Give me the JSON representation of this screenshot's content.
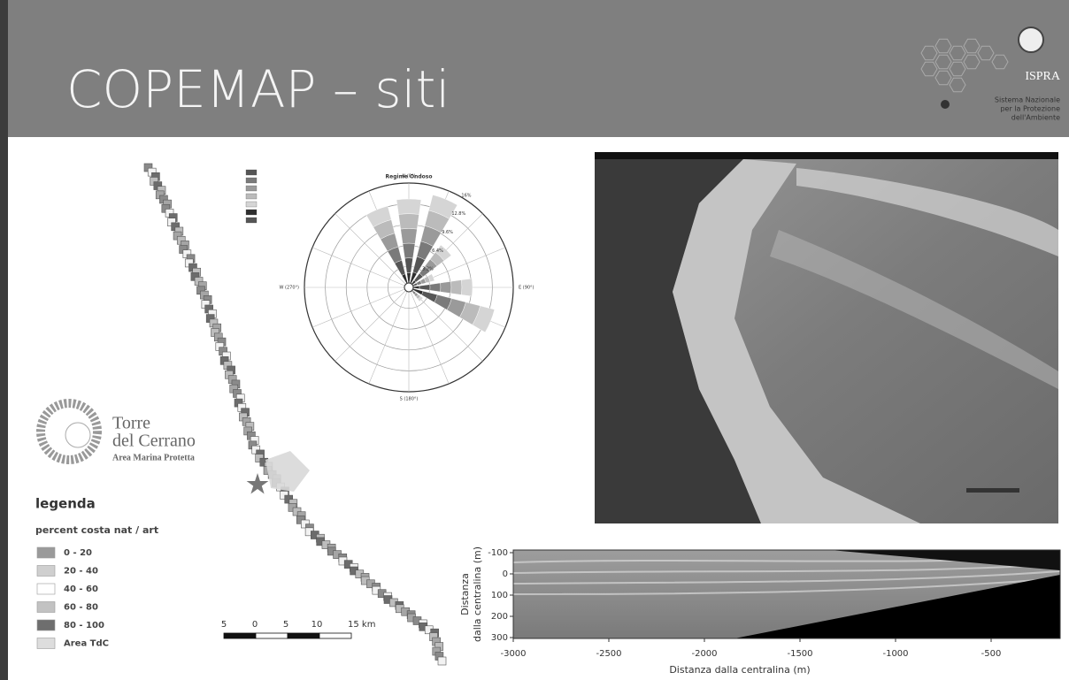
{
  "header": {
    "title": "COPEMAP – siti",
    "logo": {
      "name": "ISPRA",
      "lines": [
        "Sistema Nazionale",
        "per la Protezione",
        "dell'Ambiente"
      ]
    }
  },
  "map": {
    "logo": [
      "Torre",
      "del Cerrano",
      "Area Marina Protetta"
    ],
    "legend": {
      "title": "legenda",
      "subtitle": "percent costa nat / art",
      "items": [
        "0 - 20",
        "20 - 40",
        "40 - 60",
        "60 - 80",
        "80 - 100",
        "Area TdC"
      ]
    },
    "scale": [
      "5",
      "0",
      "5",
      "10",
      "15 km"
    ]
  },
  "wind_rose": {
    "title": "Regime Ondoso",
    "directions": [
      "N (0°)",
      "E (90°)",
      "S (180°)",
      "W (270°)"
    ],
    "rings": [
      "16%",
      "12.8%",
      "9.6%",
      "6.4%",
      "3.2%"
    ]
  },
  "profile": {
    "y_label": [
      "Distanza",
      "dalla centralina (m)"
    ],
    "x_label": "Distanza dalla centralina (m)",
    "xticks": [
      "-3000",
      "-2500",
      "-2000",
      "-1500",
      "-1000",
      "-500"
    ],
    "yticks": [
      "-100",
      "0",
      "100",
      "200",
      "300"
    ]
  }
}
